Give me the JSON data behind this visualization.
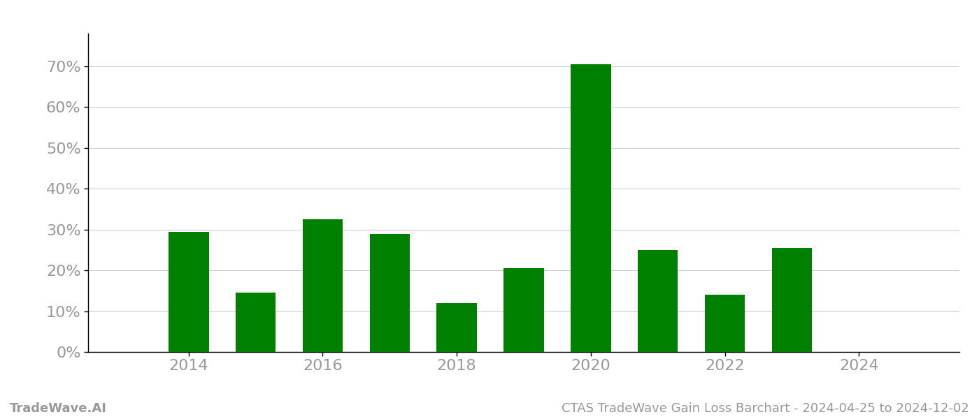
{
  "years": [
    2014,
    2015,
    2016,
    2017,
    2018,
    2019,
    2020,
    2021,
    2022,
    2023
  ],
  "values": [
    0.295,
    0.145,
    0.325,
    0.289,
    0.12,
    0.205,
    0.705,
    0.25,
    0.14,
    0.255
  ],
  "bar_color": "#008000",
  "background_color": "#ffffff",
  "grid_color": "#cccccc",
  "tick_label_color": "#999999",
  "footer_color": "#999999",
  "ylim": [
    0,
    0.78
  ],
  "yticks": [
    0.0,
    0.1,
    0.2,
    0.3,
    0.4,
    0.5,
    0.6,
    0.7
  ],
  "xtick_positions": [
    2014,
    2016,
    2018,
    2020,
    2022,
    2024
  ],
  "xtick_labels": [
    "2014",
    "2016",
    "2018",
    "2020",
    "2022",
    "2024"
  ],
  "footer_left": "TradeWave.AI",
  "footer_right": "CTAS TradeWave Gain Loss Barchart - 2024-04-25 to 2024-12-02",
  "bar_width": 0.6,
  "tick_fontsize": 16,
  "footer_fontsize": 13
}
